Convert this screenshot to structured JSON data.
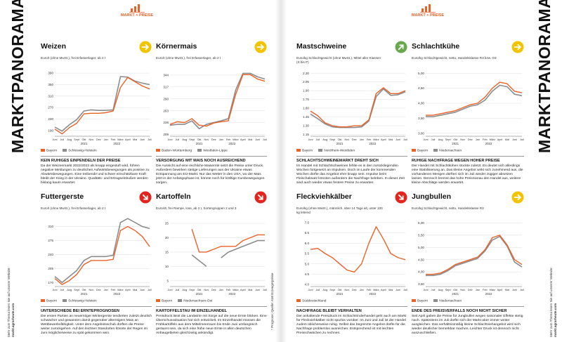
{
  "pages": [
    {
      "logo": "MARKT + PREISE",
      "side_title": "MARKTPANORAMA",
      "side_note": "Mehr zum Thema lesen Sie auf unserer Website:",
      "side_url": "markt.agrarheute.com"
    },
    {
      "logo": "MARKT + PREISE",
      "side_title": "MARKTPANORAMA",
      "side_note": "Mehr zum Thema lesen Sie auf unserer Website:",
      "side_url": "markt.agrarheute.com"
    }
  ],
  "footnote": "* Prognose; Quelle: AMI Erzeugerpreise",
  "chart_data": [
    {
      "type": "line",
      "title": "Weizen",
      "subtitle": "Euro/t (ohne MwSt.), frei Erfasserlager, ab 2 t",
      "trend": "right",
      "trend_color": "#f2c400",
      "categories": [
        "Juni",
        "Juli",
        "Aug",
        "Sept",
        "Okt",
        "Nov",
        "Dez",
        "Jan",
        "Feb",
        "März",
        "April",
        "Mai",
        "Juni",
        "Juli"
      ],
      "x_groups": [
        "2021",
        "2022"
      ],
      "ylim": [
        170,
        400
      ],
      "yticks": [
        190,
        230,
        270,
        310,
        350,
        390
      ],
      "grid": true,
      "series": [
        {
          "name": "Bayern",
          "color": "#e8632a",
          "values": [
            195,
            178,
            200,
            215,
            248,
            250,
            250,
            252,
            258,
            340,
            375,
            360,
            345,
            335
          ]
        },
        {
          "name": "Schleswig-Holstein",
          "color": "#8c8c8c",
          "values": [
            202,
            188,
            210,
            228,
            258,
            262,
            260,
            260,
            262,
            378,
            376,
            362,
            355,
            350
          ]
        }
      ],
      "heading": "KEIN RUHIGES EINPENDELN DER PREISE",
      "text": "Da der Weizenmarkt 2022/2023 als knapp eingestuft wird, führen negative Meldungen zu deutlichen Aufwärtsbewegungen als positive zu Abwärtsbewegungen. Eine treibende und schwer einschätzbare Kraft bleibt der Krieg in der Ukraine. Qualitäts- und Ertragseinbußen werden bislang kaum erwartet."
    },
    {
      "type": "line",
      "title": "Körnermais",
      "subtitle": "Euro/t (ohne MwSt.), frei Erfasserlager, ab 2 t",
      "trend": "right",
      "trend_color": "#f2c400",
      "categories": [
        "Juni",
        "Juli",
        "Aug",
        "Sept",
        "Okt",
        "Nov",
        "Dez",
        "Jan",
        "Feb",
        "März",
        "April",
        "Mai",
        "Juni",
        "Juli"
      ],
      "x_groups": [
        "2021",
        "2022"
      ],
      "ylim": [
        205,
        355
      ],
      "yticks": [
        209,
        236,
        263,
        290,
        317,
        344
      ],
      "grid": true,
      "series": [
        {
          "name": "Baden-Württemberg",
          "color": "#e8632a",
          "values": [
            232,
            238,
            236,
            245,
            230,
            228,
            235,
            238,
            240,
            300,
            345,
            345,
            335,
            330
          ]
        },
        {
          "name": "Westfalen-Lippe",
          "color": "#8c8c8c",
          "values": [
            230,
            232,
            232,
            240,
            222,
            232,
            236,
            240,
            245,
            310,
            348,
            348,
            340,
            335
          ]
        }
      ],
      "heading": "VERSORGUNG MIT MAIS NOCH AUSREICHEND",
      "text": "Die Aussicht auf eine reichliche Maisernte setzt die Preise unter Druck. Außerdem bewirken stetige Lieferungen aus der Ukraine etwas Entspannung am EU-Markt. Nur das Wetter in den USA, wo der Mais jetzt in der Anfangsphase ist, könnte noch für kräftige Kursbewegungen sorgen."
    },
    {
      "type": "line",
      "title": "Futtergerste",
      "subtitle": "Euro/t (ohne MwSt.), frei Erfasserlager, ab 2 t",
      "trend": "down",
      "trend_color": "#e2261d",
      "categories": [
        "Juni",
        "Juli",
        "Aug",
        "Sept",
        "Okt",
        "Nov",
        "Dez",
        "Jan",
        "Feb",
        "März",
        "April",
        "Mai",
        "Juni",
        "Juli"
      ],
      "x_groups": [
        "2021",
        "2022"
      ],
      "ylim": [
        160,
        325
      ],
      "yticks": [
        170,
        205,
        240,
        275,
        310
      ],
      "grid": true,
      "series": [
        {
          "name": "Bayern",
          "color": "#e8632a",
          "values": [
            180,
            165,
            175,
            190,
            215,
            225,
            225,
            225,
            228,
            300,
            310,
            300,
            285,
            260
          ]
        },
        {
          "name": "Schleswig-Holstein",
          "color": "#8c8c8c",
          "values": [
            185,
            170,
            185,
            200,
            225,
            235,
            235,
            235,
            238,
            320,
            330,
            320,
            310,
            305
          ]
        }
      ],
      "heading": "UNTERSCHIEDE BEI ERNTEPROGNOSEN",
      "text": "Die ersten Partien an neuerntiger Wintergerste tendierten zuletzt deutlich schwächer und gewannen damit gegenüber alterntigem Mais an Wettbewerbsfähigkeit. Unter dem Angebotsschub dürften die Preise weiter zurückgehen. Auf den leichten Standorten könnte der Regen im Juni möglicherweise zu spät gekommen sein."
    },
    {
      "type": "line",
      "title": "Kartoffeln",
      "subtitle": "Euro/dt, frei Rampe, lose, ab 2 t, Sortengruppen 2 und 3",
      "trend": "down",
      "trend_color": "#e2261d",
      "categories": [
        "Juni",
        "Juli",
        "Aug",
        "Sept",
        "Okt",
        "Nov",
        "Dez",
        "Jan",
        "Feb",
        "März",
        "April",
        "Mai",
        "Juni",
        "Juli"
      ],
      "x_groups": [
        "2021",
        "2022"
      ],
      "ylim": [
        3,
        26
      ],
      "yticks": [
        5,
        10,
        15,
        20,
        25
      ],
      "grid": true,
      "series": [
        {
          "name": "Bayern",
          "color": "#e8632a",
          "values": [
            null,
            null,
            null,
            23,
            15,
            15,
            16,
            17,
            17,
            17,
            19,
            20,
            21,
            21
          ]
        },
        {
          "name": "Niedersachsen-Ost",
          "color": "#8c8c8c",
          "values": [
            null,
            null,
            null,
            14,
            12,
            10,
            null,
            13,
            15,
            16,
            17,
            18,
            19,
            19
          ]
        }
      ],
      "heading": "KARTOFFELSTAU IM EINZELHANDEL",
      "text": "Preisdruck lässt die Landwirte mit Sorge auf die neue Ernte blicken. Eine Überschusssituation hat sich entwickelt. Im Einzelhandel müssen die Frühkartoffeln aus dem Mittelmeerraum bis Ende Juni umfangreich geräumt sein, da sich eine frühe neue Ernte in allen deutschen Anbaugebieten gleichzeitig ankündigt."
    },
    {
      "type": "line",
      "title": "Mastschweine",
      "subtitle": "Euro/kg Schlachtgewicht (ohne MwSt.), Mittel aller Klassen (S bis P)",
      "trend": "up",
      "trend_color": "#6aa84f",
      "categories": [
        "Juni",
        "Juli",
        "Aug",
        "Sept",
        "Okt",
        "Nov",
        "Dez",
        "Jan",
        "Feb",
        "März",
        "April",
        "Mai",
        "Juni",
        "Juli"
      ],
      "x_groups": [
        "2021",
        "2022"
      ],
      "ylim": [
        1.12,
        2.25
      ],
      "yticks": [
        {
          "value": 1.15,
          "label": "1.15"
        },
        {
          "value": 1.3,
          "label": "1.30"
        },
        {
          "value": 1.45,
          "label": "1.45"
        },
        {
          "value": 1.6,
          "label": "1.60"
        },
        {
          "value": 1.75,
          "label": "1.75"
        },
        {
          "value": 1.9,
          "label": "1.90"
        },
        {
          "value": 2.05,
          "label": "2.05"
        },
        {
          "value": 2.2,
          "label": "2.20"
        }
      ],
      "grid": true,
      "series": [
        {
          "name": "Bayern",
          "color": "#e8632a",
          "values": [
            1.55,
            1.47,
            1.35,
            1.3,
            1.28,
            1.28,
            1.3,
            1.3,
            1.4,
            1.85,
            1.95,
            1.85,
            1.85,
            1.9
          ]
        },
        {
          "name": "Nordrhein-Westfalen",
          "color": "#8c8c8c",
          "values": [
            1.5,
            1.42,
            1.33,
            1.28,
            1.27,
            1.27,
            1.27,
            1.28,
            1.38,
            1.8,
            1.93,
            1.82,
            1.83,
            1.88
          ]
        }
      ],
      "heading": "SCHLACHTSCHWEINEMARKT DREHT SICH",
      "text": "Im Handel mit Schlachtschweinen fehlte es in den zurückliegenden Wochen fortgesetzt an Impulsen. Doch im Laufe der kommenden Wochen dürfte das Angebot eher knapp sein. Impulse beim Fleischabsatz könnten außerdem die Nachfrage beleben. In dieser Zeit sind auch wieder etwas festere Preise zu erwarten."
    },
    {
      "type": "line",
      "title": "Schlachtkühe",
      "subtitle": "Euro/kg Schlachtgewicht, netto, Handelsklasse R3 bzw. O3",
      "trend": "right",
      "trend_color": "#f2c400",
      "categories": [
        "Juni",
        "Juli",
        "Aug",
        "Sept",
        "Okt",
        "Nov",
        "Dez",
        "Jan",
        "Feb",
        "März",
        "April",
        "Mai",
        "Juni",
        "Juli"
      ],
      "x_groups": [
        "2021",
        "2022"
      ],
      "ylim": [
        2.9,
        5.1
      ],
      "yticks": [
        {
          "value": 3,
          "label": "3,00"
        },
        {
          "value": 3.5,
          "label": "3,50"
        },
        {
          "value": 4,
          "label": "4,00"
        },
        {
          "value": 4.5,
          "label": "4,50"
        },
        {
          "value": 5,
          "label": "5,00"
        }
      ],
      "grid": true,
      "series": [
        {
          "name": "Bayern",
          "color": "#e8632a",
          "values": [
            3.6,
            3.6,
            3.65,
            3.7,
            3.75,
            3.85,
            3.95,
            4.0,
            4.2,
            4.5,
            4.7,
            4.65,
            4.4,
            4.35
          ]
        },
        {
          "name": "Niedersachsen",
          "color": "#8c8c8c",
          "values": [
            3.55,
            3.55,
            3.6,
            3.65,
            3.7,
            3.8,
            3.9,
            3.95,
            4.1,
            4.4,
            4.6,
            4.55,
            4.3,
            4.25
          ]
        }
      ],
      "heading": "RUHIGE NACHFRAGE WEGEN HOHER PREISE",
      "text": "Der Handel mit Schlachtkühen stockte zuletzt. Es deutet sich allerdings eine Stabilisierung an. Das kleine Angebot wirkt sich zunehmend aus, die vorhandenen Mengen dürften sich im Juli wieder zügiger absetzen lassen. Dennoch bremst das hohe Preisniveau den Handel aus, weitere kleine Abschläge werden erwartet."
    },
    {
      "type": "line",
      "title": "Fleckviehkälber",
      "subtitle": "Euro/kg (ohne MwSt.), männlich, über 14 Tage alt, unter 100 kg lebend",
      "trend": "down",
      "trend_color": "#e2261d",
      "categories": [
        "Juni",
        "Juli",
        "Aug",
        "Sept",
        "Okt",
        "Nov",
        "Dez",
        "Jan",
        "Feb",
        "März",
        "April",
        "Mai",
        "Juni",
        "Juli"
      ],
      "x_groups": [
        "2021",
        "2022"
      ],
      "ylim": [
        3.9,
        7.1
      ],
      "yticks": [
        {
          "value": 4,
          "label": "4.0"
        },
        {
          "value": 4.5,
          "label": "4.5"
        },
        {
          "value": 5,
          "label": "5.0"
        },
        {
          "value": 5.5,
          "label": "5.5"
        },
        {
          "value": 6,
          "label": "6.0"
        },
        {
          "value": 6.5,
          "label": "6.5"
        },
        {
          "value": 7,
          "label": "7.0"
        }
      ],
      "grid": true,
      "series": [
        {
          "name": "Süddeutschland",
          "color": "#e8632a",
          "values": [
            5.7,
            5.75,
            5.5,
            5.3,
            5.0,
            4.7,
            4.6,
            5.0,
            6.0,
            6.8,
            6.2,
            5.5,
            5.3,
            5.2
          ]
        }
      ],
      "heading": "NACHFRAGE BLEIBT VERHALTEN",
      "text": "Der anhaltende Preisdruck im Schlachtrinderhandel geht auch am Markt für Fleckviehkälber nicht spurlos vorüber. Im Juni und Juli ist der Handel zudem üblicherweise ruhig. Selbst das begrenzte Angebot dürfte für die Nachfrage problemlos ausreichen. Entsprechend ist mit leichten Preisschwächen zu rechnen."
    },
    {
      "type": "line",
      "title": "Jungbullen",
      "subtitle": "Euro/kg Schlachtgewicht, netto, Handelsklasse R3",
      "trend": "right",
      "trend_color": "#f2c400",
      "categories": [
        "Juni",
        "Juli",
        "Aug",
        "Sept",
        "Okt",
        "Nov",
        "Dez",
        "Jan",
        "Feb",
        "März",
        "April",
        "Mai",
        "Juni",
        "Juli"
      ],
      "x_groups": [
        "2021",
        "2022"
      ],
      "ylim": [
        3.4,
        6.1
      ],
      "yticks": [
        {
          "value": 3.5,
          "label": "3,50"
        },
        {
          "value": 4,
          "label": "4,00"
        },
        {
          "value": 4.5,
          "label": "4,50"
        },
        {
          "value": 5,
          "label": "5,00"
        },
        {
          "value": 5.5,
          "label": "5,50"
        },
        {
          "value": 6,
          "label": "6,00"
        }
      ],
      "grid": true,
      "series": [
        {
          "name": "Bayern",
          "color": "#e8632a",
          "values": [
            3.9,
            3.9,
            3.95,
            4.1,
            4.3,
            4.4,
            4.5,
            4.6,
            4.9,
            5.4,
            5.5,
            5.1,
            4.5,
            4.3
          ]
        },
        {
          "name": "Niedersachsen",
          "color": "#8c8c8c",
          "values": [
            3.85,
            3.85,
            3.9,
            4.05,
            4.25,
            4.35,
            4.45,
            4.55,
            4.85,
            5.3,
            5.45,
            5.05,
            4.4,
            4.2
          ]
        }
      ],
      "heading": "ENDE DES PREISVERFALLS NOCH NICHT SICHER",
      "text": "Seit April gaben die Preise für Jungbullen wegen saisonaler Effekte stetig nach. Spätestens im Juli dürfte sich der Markt aber immer weiter ausgleichen. Das verhältnismäßig kleine Schlachtviehangebot wird sich wieder deutlicher bemerkbar machen. Leichter Druck ist dennoch nicht auszuschließen."
    }
  ]
}
